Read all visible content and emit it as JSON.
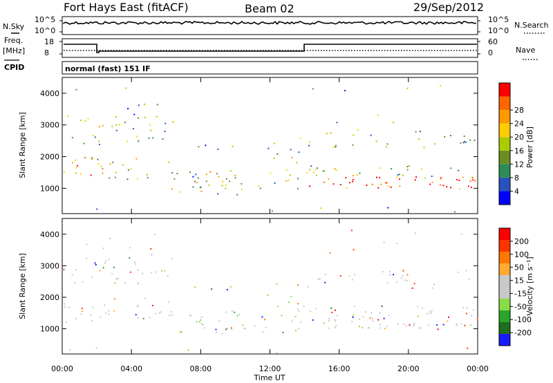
{
  "header": {
    "station": "Fort Hays East (fitACF)",
    "beam": "Beam 02",
    "date": "29/Sep/2012"
  },
  "strip_labels": {
    "nsky": "N.Sky",
    "freq": "Freq.",
    "freq_unit": "[MHz]",
    "cpid": "CPID",
    "nsearch": "N.Search",
    "nave": "Nave",
    "nsky_top": "10^5",
    "nsky_bottom": "10^0",
    "nsearch_top": "10^5",
    "nsearch_bottom": "10^0",
    "freq_top": "18",
    "freq_bottom": "8",
    "nave_top": "60",
    "nave_bottom": "0",
    "cpid_text": "normal (fast) 151 IF"
  },
  "colors": {
    "power": [
      "#0000ff",
      "#2a52be",
      "#2e8b57",
      "#6b8e23",
      "#aacc00",
      "#ffcc00",
      "#ff9900",
      "#ff6600",
      "#ff0000"
    ],
    "velocity": [
      "#1a1aff",
      "#1e6e1e",
      "#2aa52a",
      "#88dd44",
      "#c8c8c8",
      "#c8c8c8",
      "#ffaa33",
      "#ff7700",
      "#ff3300",
      "#ff0000"
    ]
  },
  "chart_data": [
    {
      "type": "heatmap",
      "name": "power",
      "xlabel": "",
      "ylabel": "Slant Range [km]",
      "xlim": [
        0,
        24
      ],
      "ylim": [
        200,
        4500
      ],
      "x_ticks": [
        "00:00",
        "04:00",
        "08:00",
        "12:00",
        "16:00",
        "20:00",
        "00:00"
      ],
      "y_ticks": [
        1000,
        2000,
        3000,
        4000
      ],
      "colorbar": {
        "label": "Power [dB]",
        "ticks": [
          4,
          8,
          12,
          16,
          20,
          24,
          28
        ],
        "range": [
          0,
          32
        ]
      }
    },
    {
      "type": "heatmap",
      "name": "velocity",
      "xlabel": "Time UT",
      "ylabel": "Slant Range [km]",
      "xlim": [
        0,
        24
      ],
      "ylim": [
        200,
        4500
      ],
      "x_ticks": [
        "00:00",
        "04:00",
        "08:00",
        "12:00",
        "16:00",
        "20:00",
        "00:00"
      ],
      "y_ticks": [
        1000,
        2000,
        3000,
        4000
      ],
      "colorbar": {
        "label": "Velocity [m s⁻¹]",
        "ticks": [
          200,
          100,
          50,
          15,
          -15,
          -50,
          -100,
          -200
        ]
      }
    }
  ]
}
